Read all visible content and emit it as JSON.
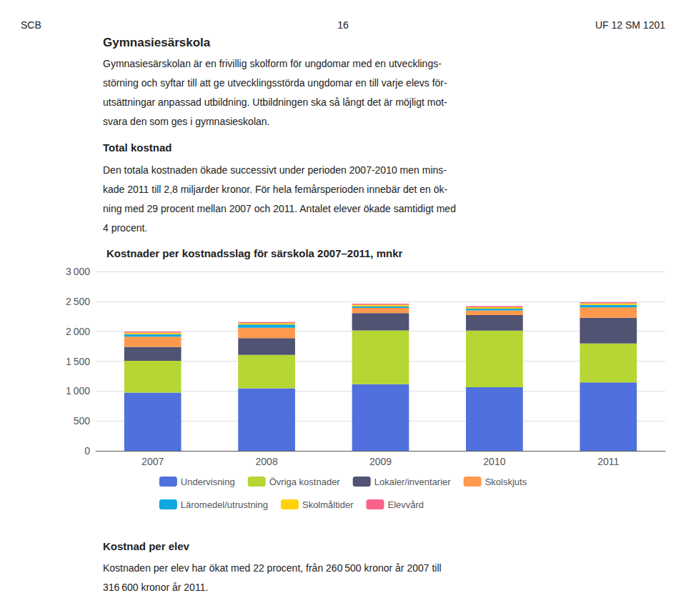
{
  "chart_data": {
    "type": "bar",
    "title": "Kostnader per kostnadsslag för särskola 2007–2011, mnkr",
    "annotations": [
      "SCB",
      "16",
      "UF 12 SM 1201",
      "Gymnasiesärskola",
      "Gymnasiesärskolan är en frivillig skolform för ungdomar med en utvecklings-\nstörning och syftar till att ge utvecklingsstörda ungdomar en till varje elevs för-\nutsättningar anpassad utbildning. Utbildningen ska så långt det är möjligt mot-\nsvara den som ges i gymnasieskolan.",
      "Total kostnad",
      "Den totala kostnaden ökade successivt under perioden 2007-2010 men mins-\nkade 2011 till 2,8 miljarder kronor. För hela femårsperioden innebär det en ök-\nning med 29 procent mellan 2007 och 2011. Antalet elever ökade samtidigt med\n4 procent.",
      "Kostnad per elev",
      "Kostnaden per elev har ökat med 22 procent, från 260 500 kronor år 2007 till\n316 600 kronor år 2011."
    ],
    "categories": [
      "2007",
      "2008",
      "2009",
      "2010",
      "2011"
    ],
    "series": [
      {
        "name": "Undervisning",
        "values": [
          975,
          1045,
          1115,
          1065,
          1145
        ]
      },
      {
        "name": "Övriga kostnader",
        "values": [
          530,
          560,
          900,
          945,
          650
        ]
      },
      {
        "name": "Lokaler/inventarier",
        "values": [
          235,
          280,
          290,
          260,
          430
        ]
      },
      {
        "name": "Skolskjuts",
        "values": [
          170,
          175,
          85,
          80,
          175
        ]
      },
      {
        "name": "Läromedel/utrustning",
        "values": [
          40,
          52,
          28,
          27,
          42
        ]
      },
      {
        "name": "Skolmåltider",
        "values": [
          25,
          25,
          25,
          25,
          25
        ]
      },
      {
        "name": "Elevvård",
        "values": [
          18,
          18,
          18,
          18,
          18
        ]
      }
    ],
    "stacked": true,
    "ylim": [
      0,
      3000
    ],
    "yticks": [
      0,
      500,
      {
        "value": 1000,
        "label": "1 000"
      },
      {
        "value": 1500,
        "label": "1 500"
      },
      {
        "value": 2000,
        "label": "2 000"
      },
      {
        "value": 2500,
        "label": "2 500"
      },
      {
        "value": 3000,
        "label": "3 000"
      }
    ],
    "grid": true,
    "legend": "bottom"
  }
}
